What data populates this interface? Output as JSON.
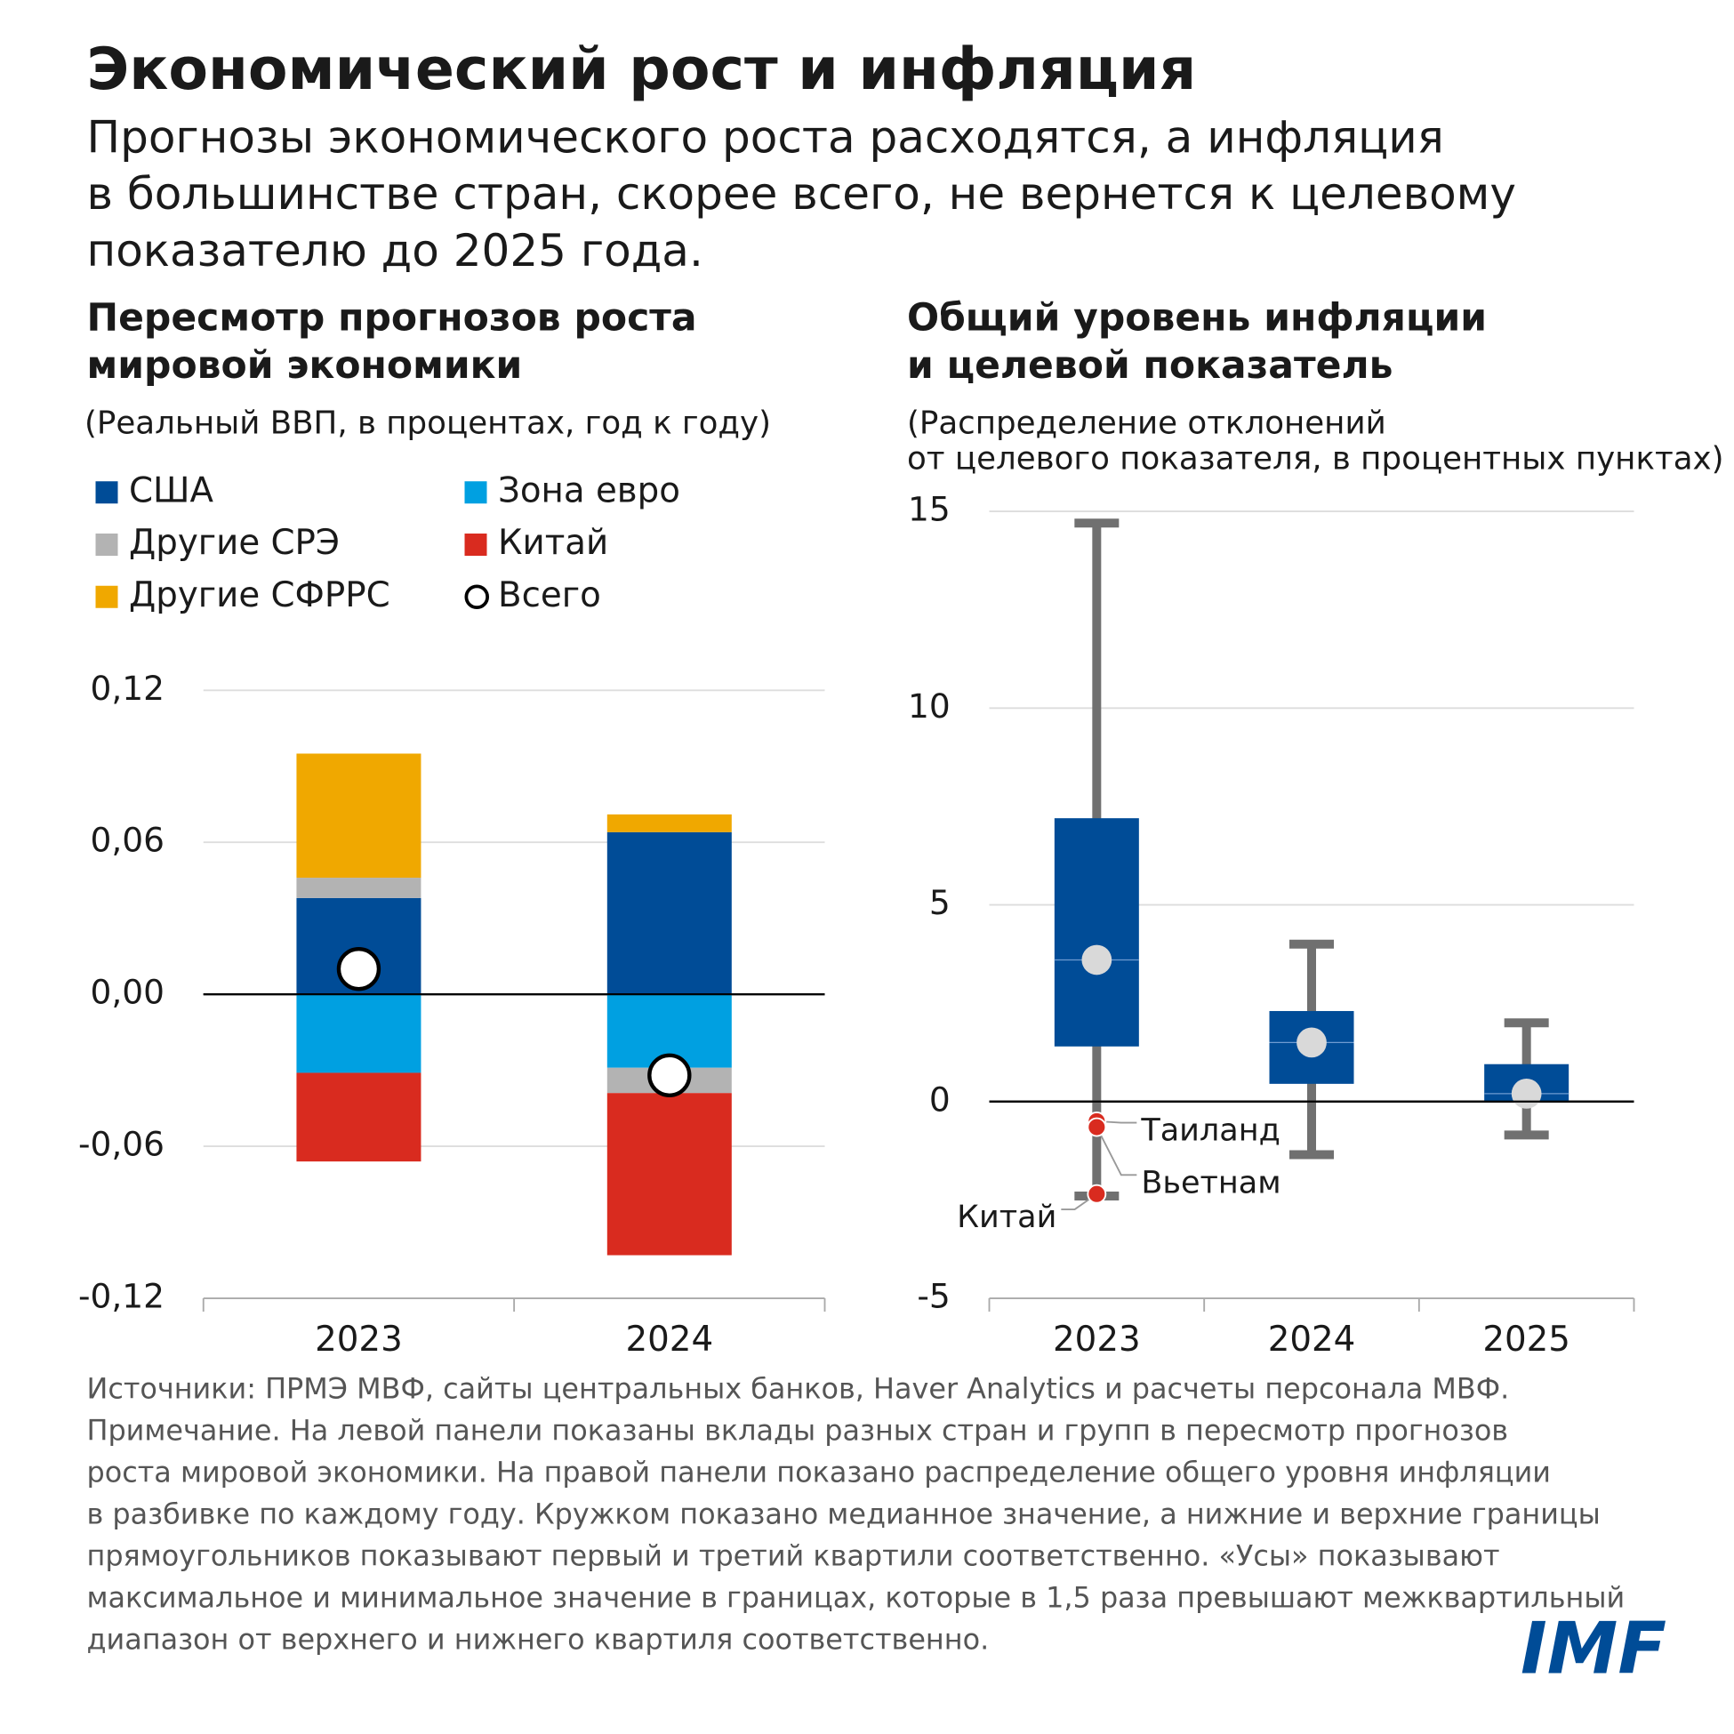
{
  "title": "Экономический рост и инфляция",
  "subtitle": [
    "Прогнозы экономического роста расходятся, а инфляция",
    "в большинстве стран, скорее всего, не вернется к целевому",
    "показателю до 2025 года."
  ],
  "chart_data": [
    {
      "type": "bar",
      "stacked": true,
      "title": [
        "Пересмотр прогнозов роста",
        "мировой экономики"
      ],
      "subtitle": "(Реальный ВВП, в процентах, год к году)",
      "categories": [
        "2023",
        "2024"
      ],
      "series": [
        {
          "name": "США",
          "color": "#004c97",
          "values": [
            0.038,
            0.064
          ]
        },
        {
          "name": "Зона евро",
          "color": "#00a0e1",
          "values": [
            -0.031,
            -0.029
          ]
        },
        {
          "name": "Другие СРЭ",
          "color": "#b3b3b3",
          "values": [
            0.008,
            -0.01
          ]
        },
        {
          "name": "Китай",
          "color": "#d92b1f",
          "values": [
            -0.035,
            -0.064
          ]
        },
        {
          "name": "Другие СФРРС",
          "color": "#f0a800",
          "values": [
            0.049,
            0.007
          ]
        }
      ],
      "total": {
        "name": "Всего",
        "color": "#ffffff",
        "values": [
          0.01,
          -0.032
        ]
      },
      "ylim": [
        -0.12,
        0.12
      ],
      "yticks": [
        {
          "value": -0.12,
          "label": "-0,12"
        },
        {
          "value": -0.06,
          "label": "-0,06"
        },
        {
          "value": 0,
          "label": "0,00"
        },
        {
          "value": 0.06,
          "label": "0,06"
        },
        {
          "value": 0.12,
          "label": "0,12"
        }
      ],
      "grid": true
    },
    {
      "type": "box",
      "title": [
        "Общий уровень инфляции",
        "и целевой показатель"
      ],
      "subtitle": [
        "(Распределение отклонений",
        " от целевого показателя, в процентных пунктах)"
      ],
      "categories": [
        "2023",
        "2024",
        "2025"
      ],
      "color": "#004c97",
      "whisker_color": "#707070",
      "median_color": "#d9d9d9",
      "boxes": [
        {
          "low": -2.4,
          "q1": 1.4,
          "median": 3.6,
          "q3": 7.2,
          "high": 14.7
        },
        {
          "low": -1.35,
          "q1": 0.45,
          "median": 1.5,
          "q3": 2.3,
          "high": 4.0
        },
        {
          "low": -0.85,
          "q1": 0.0,
          "median": 0.2,
          "q3": 0.95,
          "high": 2.0
        }
      ],
      "points": [
        {
          "name": "Таиланд",
          "category": "2023",
          "value": -0.5,
          "color": "#d92b1f"
        },
        {
          "name": "Вьетнам",
          "category": "2023",
          "value": -0.65,
          "color": "#d92b1f"
        },
        {
          "name": "Китай",
          "category": "2023",
          "value": -2.35,
          "color": "#d92b1f"
        }
      ],
      "ylim": [
        -5,
        15
      ],
      "yticks": [
        -5,
        0,
        5,
        10,
        15
      ],
      "grid": true
    }
  ],
  "notes": [
    "Источники: ПРМЭ МВФ, сайты центральных банков, Haver Analytics и расчеты персонала МВФ.",
    "Примечание. На левой панели показаны вклады разных стран и групп в пересмотр прогнозов",
    "роста мировой экономики. На правой панели показано распределение общего уровня инфляции",
    "в разбивке по каждому году. Кружком показано медианное значение, а нижние и верхние границы",
    "прямоугольников показывают первый и третий квартили соответственно. «Усы» показывают",
    "максимальное и минимальное значение в границах, которые в 1,5 раза превышают межквартильный",
    "диапазон от верхнего и нижнего квартиля соответственно."
  ],
  "logo": "IMF"
}
